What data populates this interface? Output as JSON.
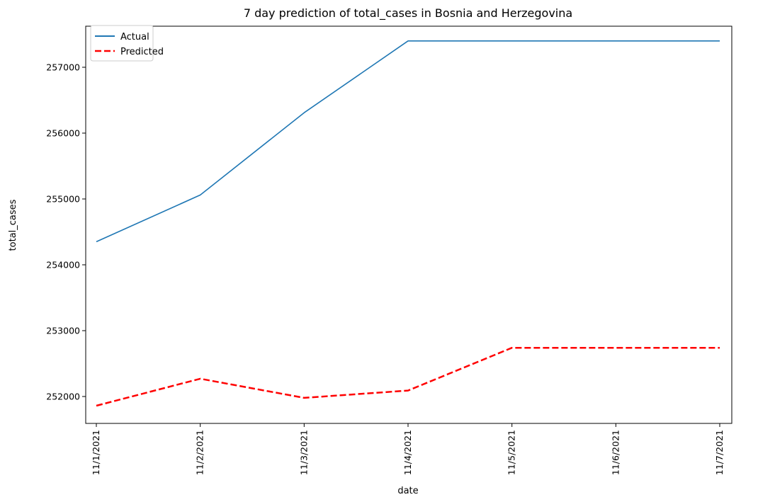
{
  "chart_data": {
    "type": "line",
    "title": "7 day prediction of total_cases in Bosnia and Herzegovina",
    "xlabel": "date",
    "ylabel": "total_cases",
    "categories": [
      "11/1/2021",
      "11/2/2021",
      "11/3/2021",
      "11/4/2021",
      "11/5/2021",
      "11/6/2021",
      "11/7/2021"
    ],
    "ylim": [
      251600,
      257400
    ],
    "yticks": [
      252000,
      253000,
      254000,
      255000,
      256000,
      257000
    ],
    "grid": false,
    "legend_position": "top-left",
    "series": [
      {
        "name": "Actual",
        "color": "#1f77b4",
        "style": "solid",
        "values": [
          254350,
          255060,
          256310,
          257400,
          257400,
          257400,
          257400
        ]
      },
      {
        "name": "Predicted",
        "color": "#ff0000",
        "style": "dashed",
        "values": [
          251860,
          252270,
          251980,
          252090,
          252740,
          252740,
          252740
        ]
      }
    ]
  }
}
